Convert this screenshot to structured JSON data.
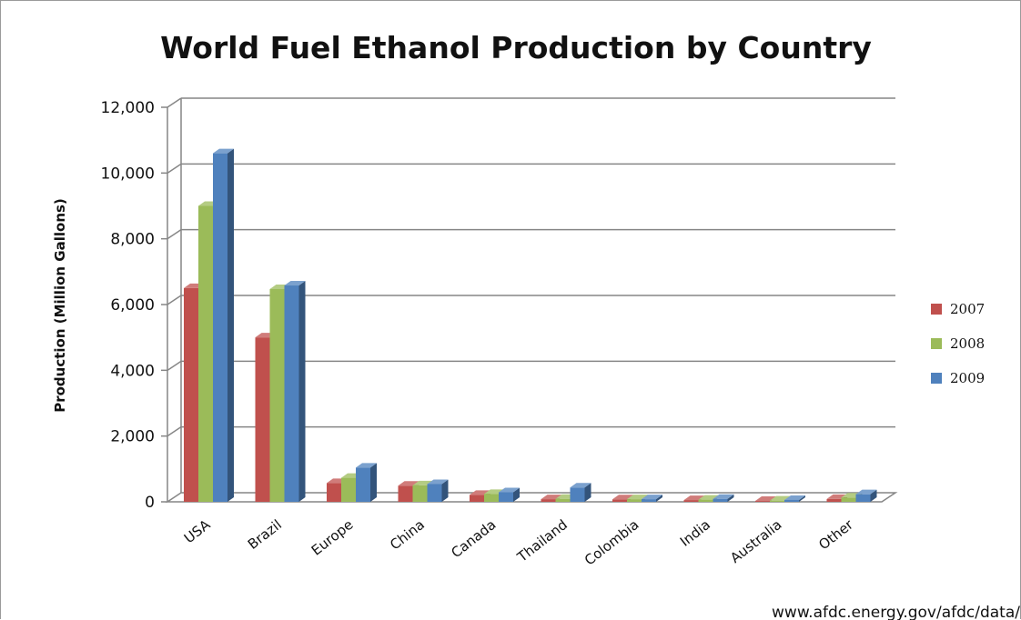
{
  "chart_data": {
    "type": "bar",
    "title": "World Fuel Ethanol Production by Country",
    "ylabel": "Production (Million Gallons)",
    "xlabel": "",
    "ylim": [
      0,
      12000
    ],
    "yticks": [
      "0",
      "2,000",
      "4,000",
      "6,000",
      "8,000",
      "10,000",
      "12,000"
    ],
    "ytick_values": [
      0,
      2000,
      4000,
      6000,
      8000,
      10000,
      12000
    ],
    "categories": [
      "USA",
      "Brazil",
      "Europe",
      "China",
      "Canada",
      "Thailand",
      "Colombia",
      "India",
      "Australia",
      "Other"
    ],
    "series": [
      {
        "name": "2007",
        "color": "#c0504d",
        "values": [
          6500,
          5000,
          570,
          490,
          210,
          80,
          75,
          53,
          26,
          85
        ]
      },
      {
        "name": "2008",
        "color": "#9bbb59",
        "values": [
          9000,
          6470,
          730,
          500,
          240,
          90,
          80,
          66,
          37,
          130
        ]
      },
      {
        "name": "2009",
        "color": "#4f81bd",
        "values": [
          10600,
          6580,
          1040,
          540,
          290,
          435,
          80,
          90,
          57,
          230
        ]
      }
    ],
    "grid": true,
    "legend_position": "right",
    "source_note": "www.afdc.energy.gov/afdc/data/"
  }
}
